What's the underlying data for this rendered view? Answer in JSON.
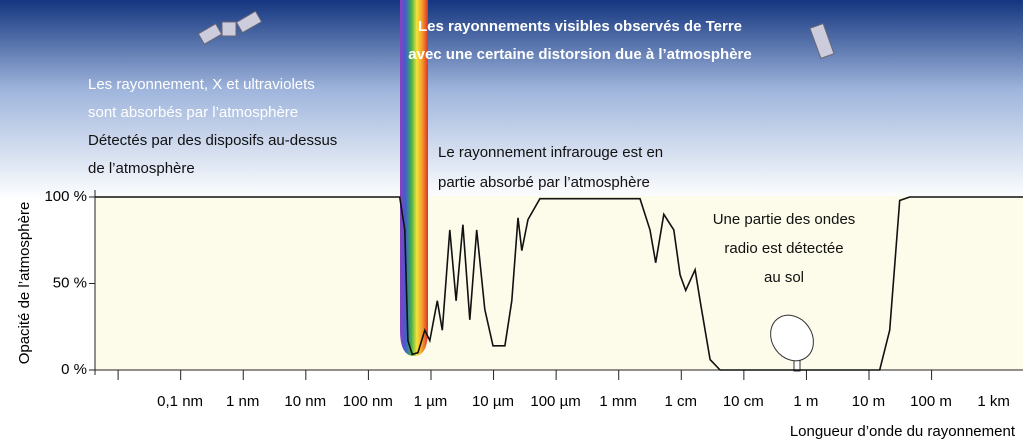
{
  "chart_data": {
    "type": "line",
    "title": [
      "Les rayonnements visibles observés de Terre",
      "avec une certaine distorsion due à l’atmosphère"
    ],
    "annotations": [
      [
        "Les rayonnement, X et ultraviolets",
        "sont absorbés par l’atmosphère",
        "Détectés par des disposifs au-dessus",
        "de l’atmosphère"
      ],
      [
        "Le rayonnement infrarouge est en",
        "partie absorbé par l’atmosphère"
      ],
      [
        "Une partie des ondes",
        "radio est détectée",
        "au sol"
      ]
    ],
    "x_label": "Longueur d’onde du rayonnement",
    "y_label": "Opacité de l’atmosphère",
    "xlim": [
      -1.36,
      13.47
    ],
    "xticks": [
      {
        "value": 0,
        "label": "0,1 nm"
      },
      {
        "value": 1,
        "label": "1 nm"
      },
      {
        "value": 2,
        "label": "10 nm"
      },
      {
        "value": 3,
        "label": "100 nm"
      },
      {
        "value": 4,
        "label": "1 µm"
      },
      {
        "value": 5,
        "label": "10 µm"
      },
      {
        "value": 6,
        "label": "100 µm"
      },
      {
        "value": 7,
        "label": "1 mm"
      },
      {
        "value": 8,
        "label": "1 cm"
      },
      {
        "value": 9,
        "label": "10 cm"
      },
      {
        "value": 10,
        "label": "1 m"
      },
      {
        "value": 11,
        "label": "10 m"
      },
      {
        "value": 12,
        "label": "100 m"
      },
      {
        "value": 13,
        "label": "1 km"
      }
    ],
    "ylim": [
      0,
      100
    ],
    "yticks": [
      {
        "value": 0,
        "label": "0 %"
      },
      {
        "value": 50,
        "label": "50 %"
      },
      {
        "value": 100,
        "label": "100 %"
      }
    ],
    "series": [
      {
        "color": "#111111",
        "x": [
          -1.36,
          3.51,
          3.59,
          3.64,
          3.71,
          3.8,
          3.91,
          3.99,
          4.11,
          4.19,
          4.31,
          4.41,
          4.52,
          4.63,
          4.74,
          4.87,
          5.0,
          5.19,
          5.3,
          5.4,
          5.46,
          5.56,
          5.75,
          7.35,
          7.51,
          7.6,
          7.73,
          7.89,
          7.99,
          8.08,
          8.23,
          8.31,
          8.47,
          8.63,
          11.18,
          11.34,
          11.5,
          11.66,
          13.47
        ],
        "values": [
          100,
          100,
          81,
          17,
          9,
          10,
          23,
          17,
          40,
          23,
          81,
          40,
          84,
          29,
          81,
          35,
          14,
          14,
          40,
          88,
          69,
          87,
          99,
          99,
          81,
          62,
          90,
          81,
          55,
          46,
          58,
          40,
          6,
          0,
          0,
          23,
          98,
          100,
          100
        ]
      }
    ]
  }
}
